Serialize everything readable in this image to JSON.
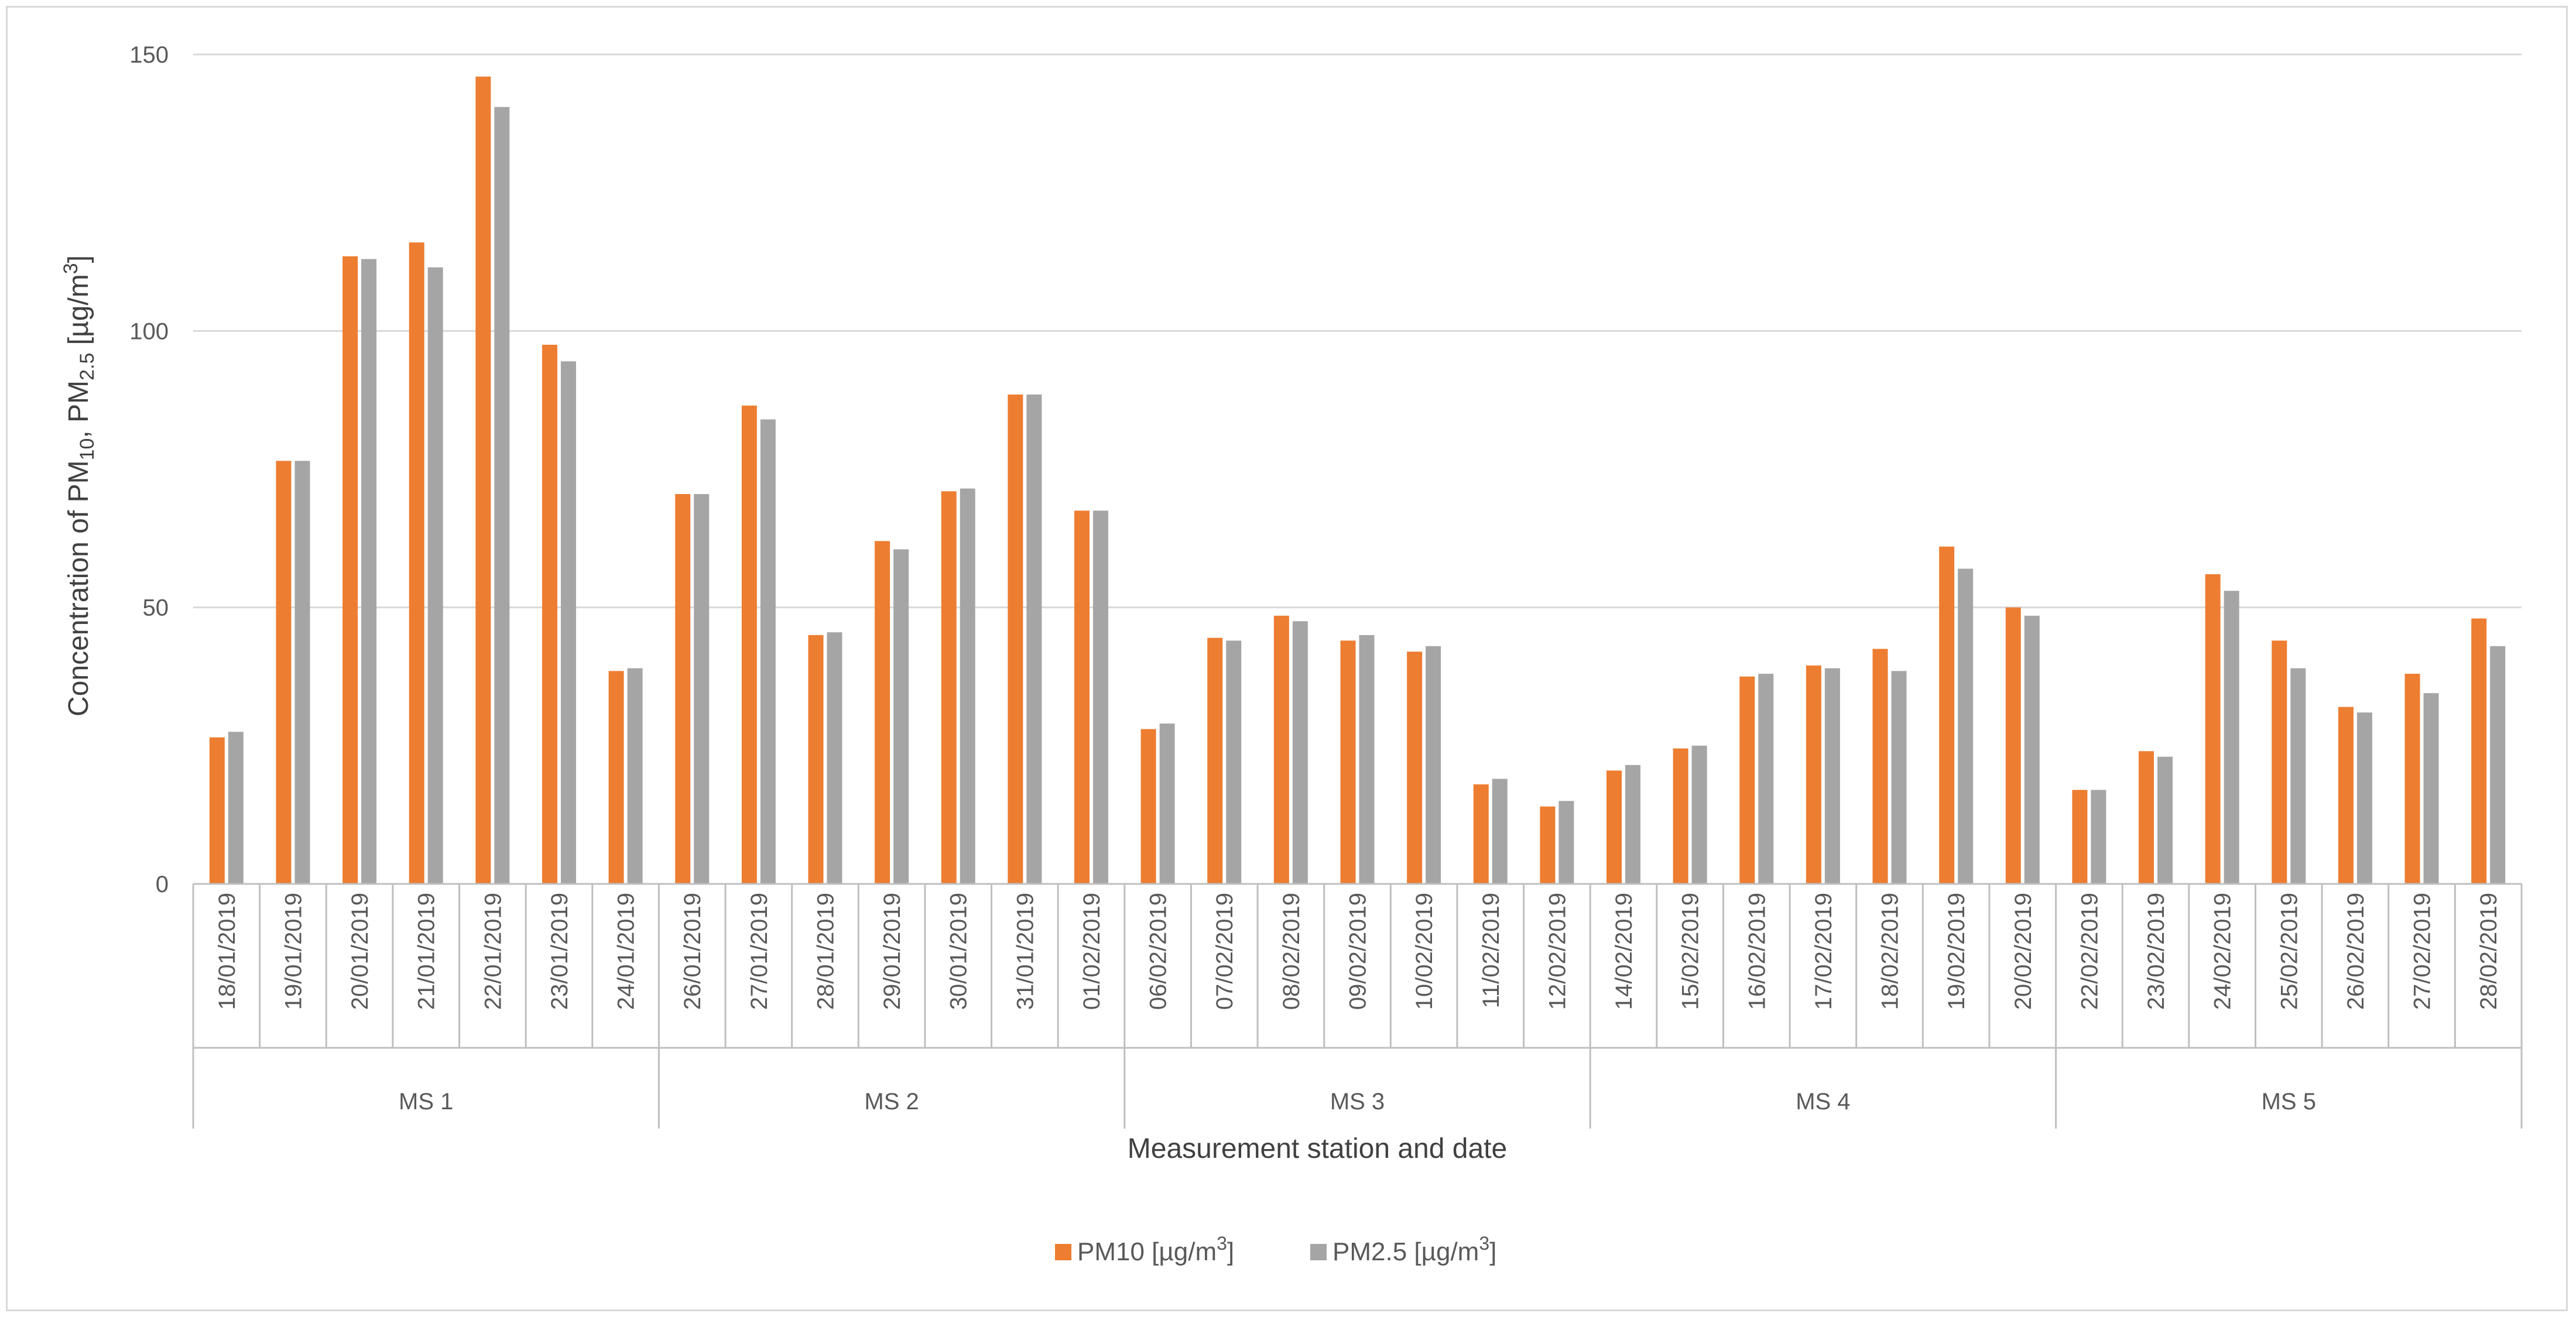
{
  "chart_data": {
    "type": "bar",
    "title": "",
    "xlabel": "Measurement station and date",
    "ylabel": "Concentration of PM10, PM2.5 [µg/m3]",
    "ylim": [
      0,
      150
    ],
    "yticks": [
      0,
      50,
      100,
      150
    ],
    "grid": true,
    "legend_position": "bottom",
    "colors": {
      "PM10": "#ed7d31",
      "PM2.5": "#a5a5a5",
      "grid": "#d9d9d9",
      "axis": "#bfbfbf"
    },
    "groups": [
      {
        "name": "MS 1",
        "categories": [
          "18/01/2019",
          "19/01/2019",
          "20/01/2019",
          "21/01/2019",
          "22/01/2019",
          "23/01/2019",
          "24/01/2019"
        ]
      },
      {
        "name": "MS 2",
        "categories": [
          "26/01/2019",
          "27/01/2019",
          "28/01/2019",
          "29/01/2019",
          "30/01/2019",
          "31/01/2019",
          "01/02/2019"
        ]
      },
      {
        "name": "MS 3",
        "categories": [
          "06/02/2019",
          "07/02/2019",
          "08/02/2019",
          "09/02/2019",
          "10/02/2019",
          "11/02/2019",
          "12/02/2019"
        ]
      },
      {
        "name": "MS 4",
        "categories": [
          "14/02/2019",
          "15/02/2019",
          "16/02/2019",
          "17/02/2019",
          "18/02/2019",
          "19/02/2019",
          "20/02/2019"
        ]
      },
      {
        "name": "MS 5",
        "categories": [
          "22/02/2019",
          "23/02/2019",
          "24/02/2019",
          "25/02/2019",
          "26/02/2019",
          "27/02/2019",
          "28/02/2019"
        ]
      }
    ],
    "series": [
      {
        "name": "PM10 [µg/m3]",
        "values": [
          26.5,
          76.5,
          113.5,
          116,
          146,
          97.5,
          38.5,
          70.5,
          86.5,
          45,
          62,
          71,
          88.5,
          67.5,
          28,
          44.5,
          48.5,
          44,
          42,
          18,
          14,
          20.5,
          24.5,
          37.5,
          39.5,
          42.5,
          61,
          50,
          17,
          24,
          56,
          44,
          32,
          38,
          48
        ]
      },
      {
        "name": "PM2.5 [µg/m3]",
        "values": [
          27.5,
          76.5,
          113,
          111.5,
          140.5,
          94.5,
          39,
          70.5,
          84,
          45.5,
          60.5,
          71.5,
          88.5,
          67.5,
          29,
          44,
          47.5,
          45,
          43,
          19,
          15,
          21.5,
          25,
          38,
          39,
          38.5,
          57,
          48.5,
          17,
          23,
          53,
          39,
          31,
          34.5,
          43
        ]
      }
    ]
  }
}
